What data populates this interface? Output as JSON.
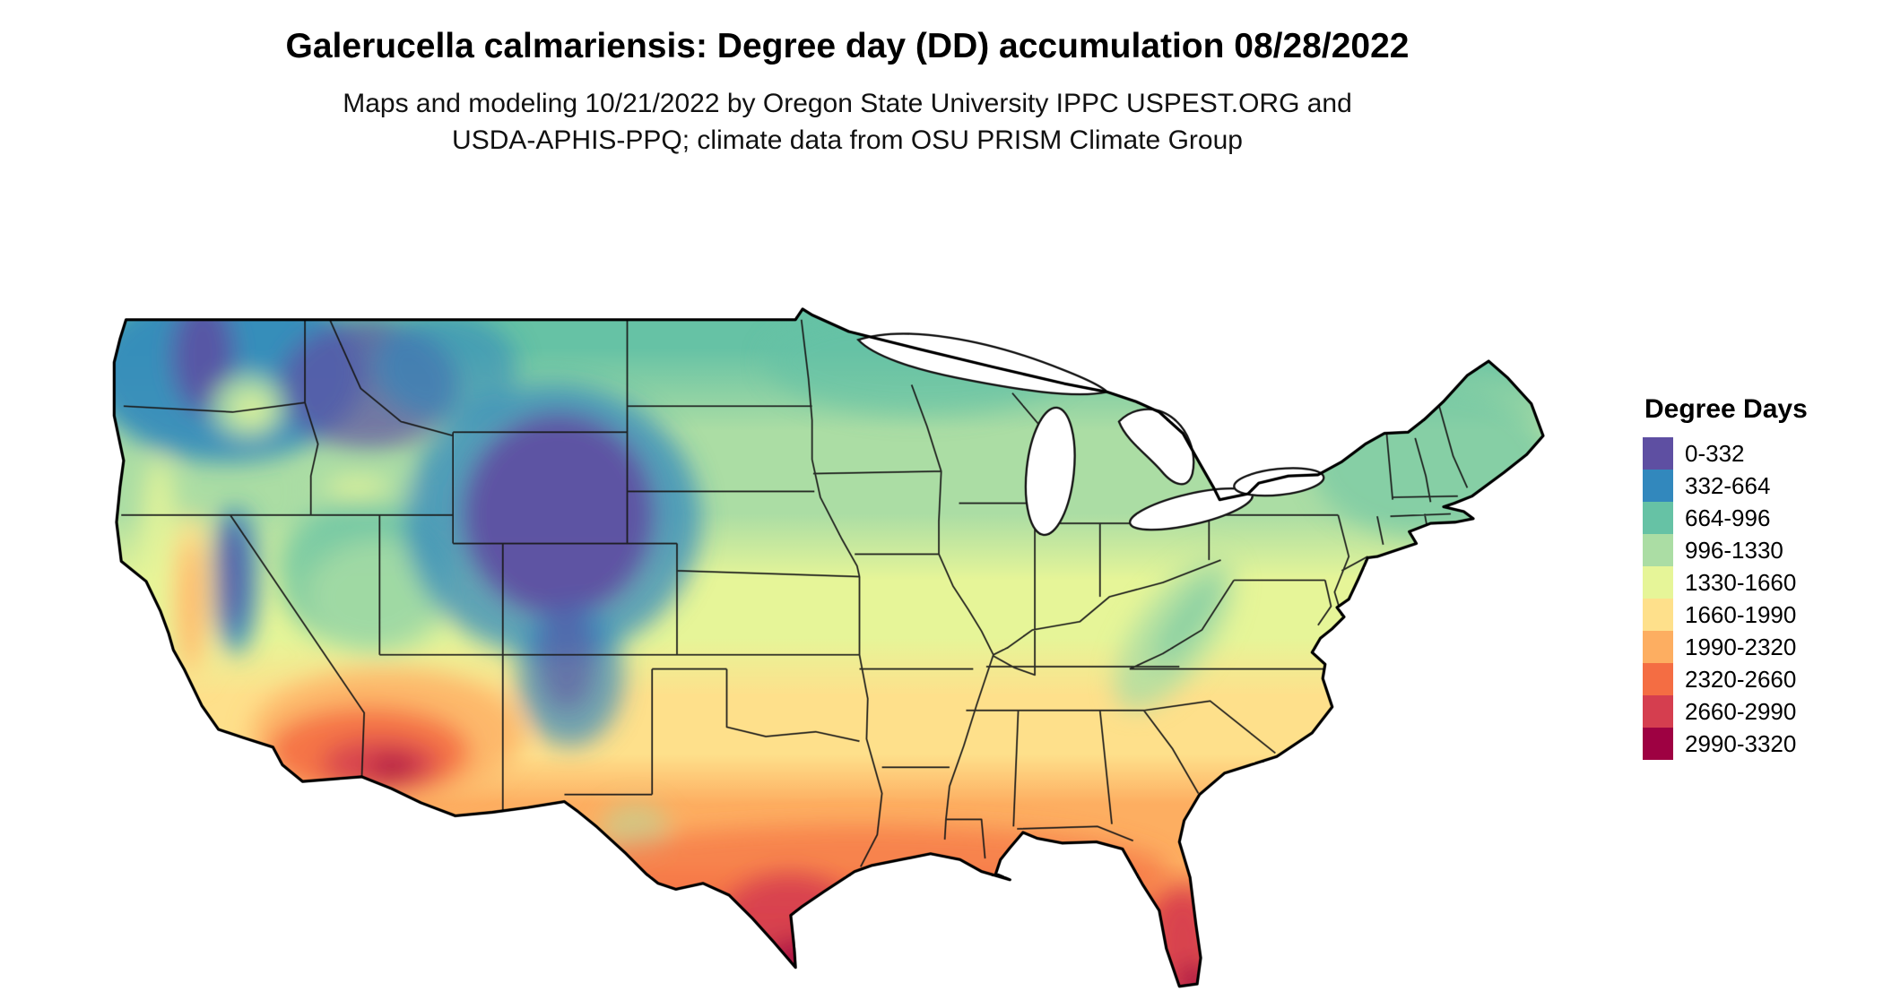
{
  "header": {
    "title": "Galerucella calmariensis: Degree day (DD) accumulation 08/28/2022",
    "subtitle_line1": "Maps and modeling 10/21/2022 by Oregon State University IPPC USPEST.ORG and",
    "subtitle_line2": "USDA-APHIS-PPQ; climate data from OSU PRISM Climate Group"
  },
  "legend": {
    "title": "Degree Days",
    "items": [
      {
        "label": "0-332",
        "color": "#5e4fa2"
      },
      {
        "label": "332-664",
        "color": "#3288bd"
      },
      {
        "label": "664-996",
        "color": "#66c2a5"
      },
      {
        "label": "996-1330",
        "color": "#abdda4"
      },
      {
        "label": "1330-1660",
        "color": "#e6f598"
      },
      {
        "label": "1660-1990",
        "color": "#fee08b"
      },
      {
        "label": "1990-2320",
        "color": "#fdae61"
      },
      {
        "label": "2320-2660",
        "color": "#f46d43"
      },
      {
        "label": "2660-2990",
        "color": "#d53e4f"
      },
      {
        "label": "2990-3320",
        "color": "#9e0142"
      }
    ]
  }
}
